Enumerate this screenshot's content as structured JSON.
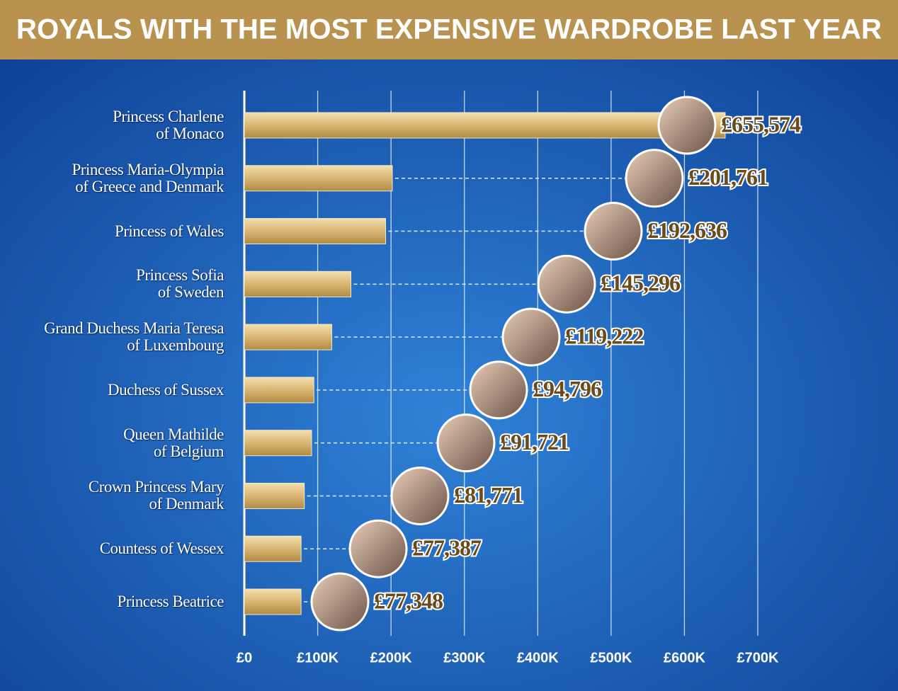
{
  "chart_data": {
    "type": "bar",
    "orientation": "horizontal",
    "title": "ROYALS WITH THE MOST EXPENSIVE WARDROBE LAST YEAR",
    "categories": [
      "Princess Charlene\nof Monaco",
      "Princess Maria-Olympia\nof Greece and Denmark",
      "Princess of Wales",
      "Princess Sofia\nof Sweden",
      "Grand Duchess Maria Teresa\nof Luxembourg",
      "Duchess of Sussex",
      "Queen Mathilde\nof Belgium",
      "Crown Princess Mary\nof Denmark",
      "Countess of Wessex",
      "Princess Beatrice"
    ],
    "values": [
      655574,
      201761,
      192636,
      145296,
      119222,
      94796,
      91721,
      81771,
      77387,
      77348
    ],
    "value_labels": [
      "£655,574",
      "£201,761",
      "£192,636",
      "£145,296",
      "£119,222",
      "£94,796",
      "£91,721",
      "£81,771",
      "£77,387",
      "£77,348"
    ],
    "color": "#d8b672",
    "xlim": [
      0,
      700000
    ],
    "xticks": [
      {
        "value": 0,
        "label": "£0"
      },
      {
        "value": 100000,
        "label": "£100K"
      },
      {
        "value": 200000,
        "label": "£200K"
      },
      {
        "value": 300000,
        "label": "£300K"
      },
      {
        "value": 400000,
        "label": "£400K"
      },
      {
        "value": 500000,
        "label": "£500K"
      },
      {
        "value": 600000,
        "label": "£600K"
      },
      {
        "value": 700000,
        "label": "£700K"
      }
    ],
    "grid": true
  }
}
